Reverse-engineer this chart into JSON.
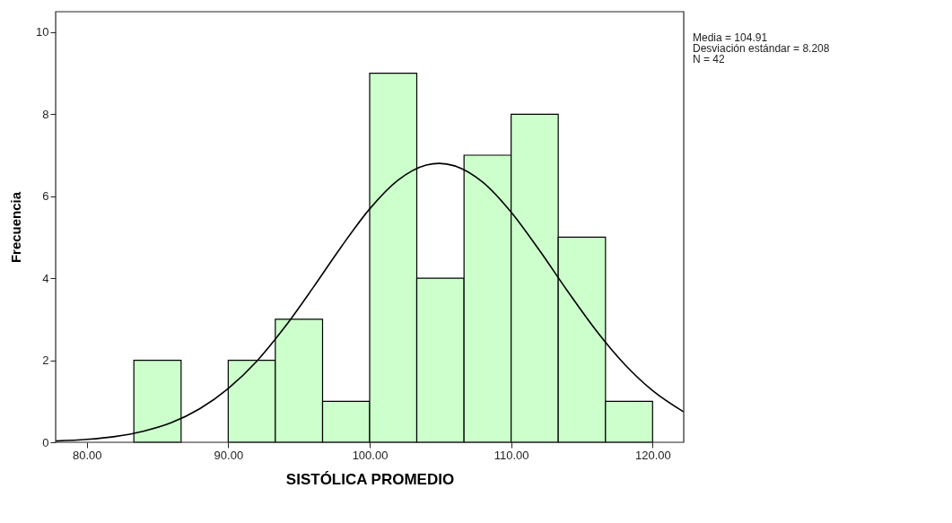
{
  "chart_data": {
    "type": "histogram",
    "xlabel": "SISTÓLICA PROMEDIO",
    "ylabel": "Frecuencia",
    "bins": [
      83.33,
      86.67,
      90.0,
      93.33,
      96.67,
      100.0,
      103.33,
      106.67,
      110.0,
      113.33,
      116.67,
      120.0
    ],
    "values": [
      2,
      0,
      2,
      3,
      1,
      9,
      4,
      7,
      8,
      5,
      1
    ],
    "color": "#ccffcc",
    "series": [
      {
        "type": "line",
        "color": "#000000",
        "x": [
          77.8,
          80,
          82,
          84,
          86,
          88,
          90,
          92,
          94,
          96,
          98,
          100,
          102,
          104,
          104.91,
          106,
          108,
          110,
          112,
          114,
          116,
          118,
          120,
          122.2
        ],
        "values": [
          0.03,
          0.07,
          0.14,
          0.27,
          0.48,
          0.82,
          1.31,
          1.97,
          2.81,
          3.77,
          4.77,
          5.69,
          6.39,
          6.76,
          6.8,
          6.74,
          6.34,
          5.61,
          4.68,
          3.68,
          2.73,
          1.91,
          1.26,
          0.74
        ]
      }
    ],
    "xlim": [
      77.8,
      122.2
    ],
    "ylim": [
      0,
      10.5
    ],
    "xticks": [
      {
        "value": 80,
        "label": "80.00"
      },
      {
        "value": 90,
        "label": "90.00"
      },
      {
        "value": 100,
        "label": "100.00"
      },
      {
        "value": 110,
        "label": "110.00"
      },
      {
        "value": 120,
        "label": "120.00"
      }
    ],
    "yticks": [
      0,
      2,
      4,
      6,
      8,
      10
    ],
    "grid": false,
    "annotations": [
      "Media = 104.91",
      "Desviación estándar = 8.208",
      "N = 42"
    ]
  }
}
